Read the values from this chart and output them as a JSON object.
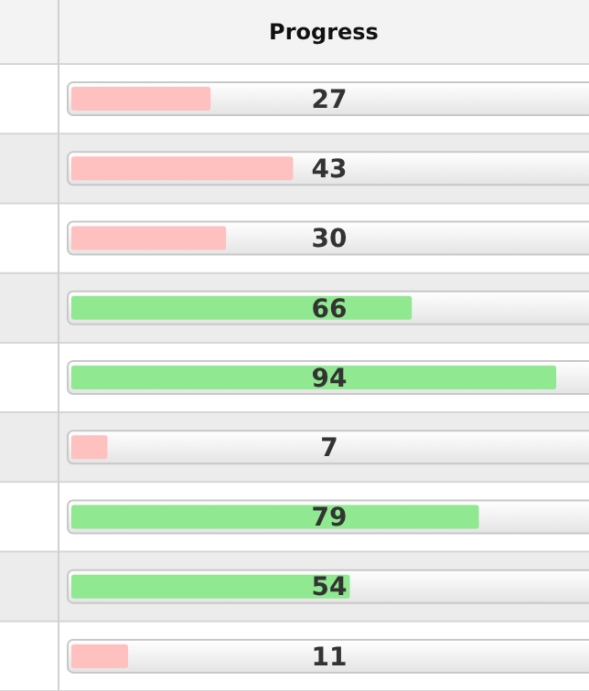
{
  "chart_data": {
    "type": "bar",
    "orientation": "horizontal",
    "title": "Progress",
    "categories": [
      null,
      null,
      null,
      null,
      null,
      null,
      null,
      null,
      null
    ],
    "values": [
      27,
      43,
      30,
      66,
      94,
      7,
      79,
      54,
      11
    ],
    "colors": [
      "#ffc0c0",
      "#ffc0c0",
      "#ffc0c0",
      "#90e890",
      "#90e890",
      "#ffc0c0",
      "#90e890",
      "#90e890",
      "#ffc0c0"
    ],
    "xlim": [
      0,
      100
    ],
    "data_labels": true
  }
}
